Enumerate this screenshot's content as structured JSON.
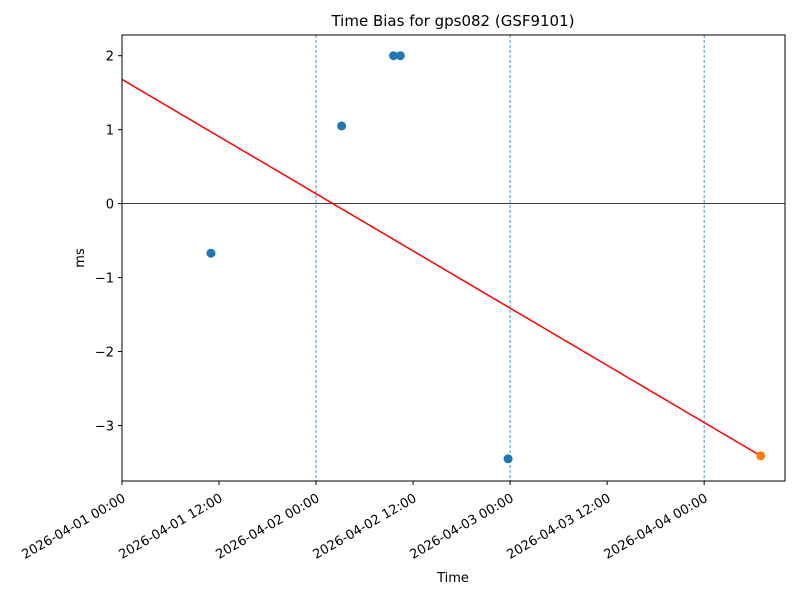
{
  "chart_data": {
    "type": "scatter",
    "title": "Time Bias for gps082 (GSF9101)",
    "xlabel": "Time",
    "ylabel": "ms",
    "x_axis_type": "datetime",
    "xlim": [
      "2026-04-01 00:00",
      "2026-04-04 10:00"
    ],
    "ylim": [
      -3.75,
      2.28
    ],
    "x_ticks": [
      "2026-04-01 00:00",
      "2026-04-01 12:00",
      "2026-04-02 00:00",
      "2026-04-02 12:00",
      "2026-04-03 00:00",
      "2026-04-03 12:00",
      "2026-04-04 00:00"
    ],
    "y_ticks": [
      2,
      1,
      0,
      -1,
      -2,
      -3
    ],
    "grid": false,
    "legend": "none",
    "day_boundary_lines": [
      "2026-04-01 00:00",
      "2026-04-02 00:00",
      "2026-04-03 00:00",
      "2026-04-04 00:00"
    ],
    "zero_line": 0,
    "series": [
      {
        "kind": "scatter",
        "color": "#1f77b4",
        "points": [
          {
            "x": "2026-04-01 11:00",
            "y": -0.67
          },
          {
            "x": "2026-04-02 03:10",
            "y": 1.05
          },
          {
            "x": "2026-04-02 09:35",
            "y": 2.0
          },
          {
            "x": "2026-04-02 10:25",
            "y": 2.0
          },
          {
            "x": "2026-04-02 23:45",
            "y": -3.45
          }
        ]
      },
      {
        "kind": "line",
        "color": "#ff0000",
        "points": [
          {
            "x": "2026-04-01 00:00",
            "y": 1.68
          },
          {
            "x": "2026-04-04 07:00",
            "y": -3.41
          }
        ]
      },
      {
        "kind": "scatter",
        "color": "#ff7f0e",
        "points": [
          {
            "x": "2026-04-04 07:00",
            "y": -3.41
          }
        ]
      }
    ]
  }
}
